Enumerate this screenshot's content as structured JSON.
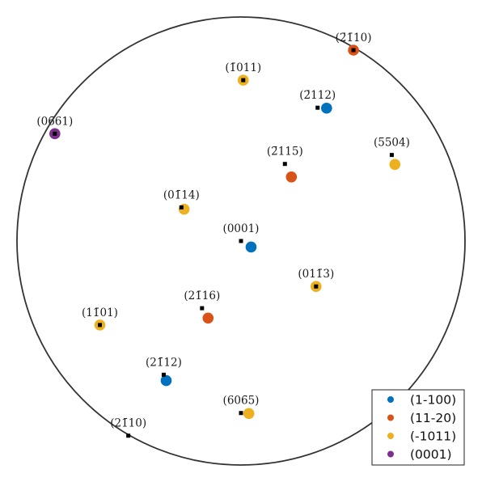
{
  "chart_data": {
    "type": "scatter",
    "title": "",
    "xlabel": "",
    "ylabel": "",
    "xlim": [
      -1,
      1
    ],
    "ylim": [
      -1,
      1
    ],
    "grid": false,
    "legend_position": "bottom-right",
    "series": [
      {
        "name": "(1-100)",
        "color": "#0072BD",
        "points": [
          [
            0.382,
            0.593
          ],
          [
            0.045,
            -0.027
          ],
          [
            -0.334,
            -0.623
          ]
        ]
      },
      {
        "name": "(11-20)",
        "color": "#D95319",
        "points": [
          [
            0.502,
            0.852
          ],
          [
            0.225,
            0.286
          ],
          [
            -0.147,
            -0.344
          ]
        ]
      },
      {
        "name": "(-1011)",
        "color": "#EDB120",
        "points": [
          [
            0.01,
            0.718
          ],
          [
            0.687,
            0.342
          ],
          [
            -0.254,
            0.142
          ],
          [
            0.335,
            -0.203
          ],
          [
            -0.63,
            -0.375
          ],
          [
            0.035,
            -0.77
          ]
        ]
      },
      {
        "name": "(0001)",
        "color": "#7E2F8E",
        "points": [
          [
            -0.831,
            0.479
          ]
        ]
      }
    ],
    "markers": [
      {
        "label": "(2̄1̄10)",
        "coord": [
          0.502,
          0.852
        ]
      },
      {
        "label": "(1̄011)",
        "coord": [
          0.01,
          0.718
        ]
      },
      {
        "label": "(2̄112)",
        "coord": [
          0.342,
          0.595
        ]
      },
      {
        "label": "(06̄61)",
        "coord": [
          -0.831,
          0.479
        ]
      },
      {
        "label": "(2̄115)",
        "coord": [
          0.196,
          0.344
        ]
      },
      {
        "label": "(5̄504)",
        "coord": [
          0.673,
          0.384
        ]
      },
      {
        "label": "(01̄14)",
        "coord": [
          -0.266,
          0.15
        ]
      },
      {
        "label": "(0001)",
        "coord": [
          0.0,
          0.0
        ]
      },
      {
        "label": "(011̄3)",
        "coord": [
          0.335,
          -0.203
        ]
      },
      {
        "label": "(21̄16)",
        "coord": [
          -0.174,
          -0.3
        ]
      },
      {
        "label": "(11̄01)",
        "coord": [
          -0.63,
          -0.375
        ]
      },
      {
        "label": "(21̄12)",
        "coord": [
          -0.345,
          -0.597
        ]
      },
      {
        "label": "(606̄5)",
        "coord": [
          0.0,
          -0.768
        ]
      },
      {
        "label": "(21̄10)",
        "coord": [
          -0.503,
          -0.869
        ]
      }
    ]
  }
}
